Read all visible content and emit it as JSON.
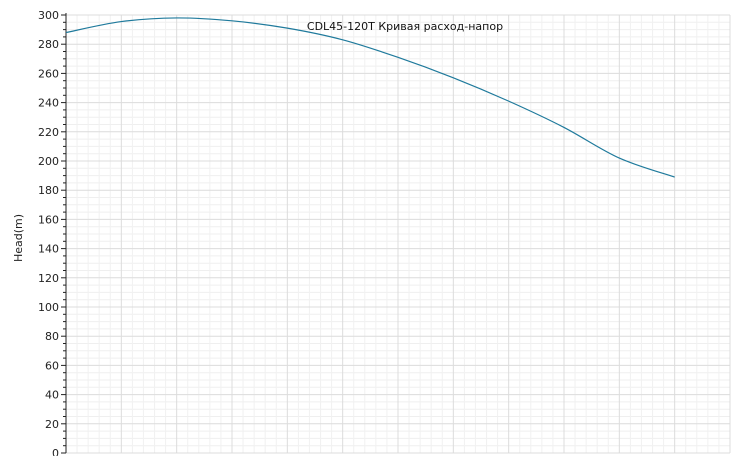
{
  "chart_data": {
    "type": "line",
    "title": "CDL45-120T Кривая расход-напор",
    "xlabel": "",
    "ylabel": "Head(m)",
    "xlim": [
      0,
      60
    ],
    "ylim": [
      0,
      300
    ],
    "y_ticks": [
      0,
      20,
      40,
      60,
      80,
      100,
      120,
      140,
      160,
      180,
      200,
      220,
      240,
      260,
      280,
      300
    ],
    "grid": true,
    "series": [
      {
        "color": "#1f7a9c",
        "x": [
          0,
          5,
          10,
          15,
          20,
          25,
          30,
          35,
          40,
          45,
          50,
          55
        ],
        "y": [
          288,
          295.5,
          298,
          296,
          291,
          283,
          271,
          257,
          241,
          223,
          202,
          189
        ]
      }
    ]
  }
}
